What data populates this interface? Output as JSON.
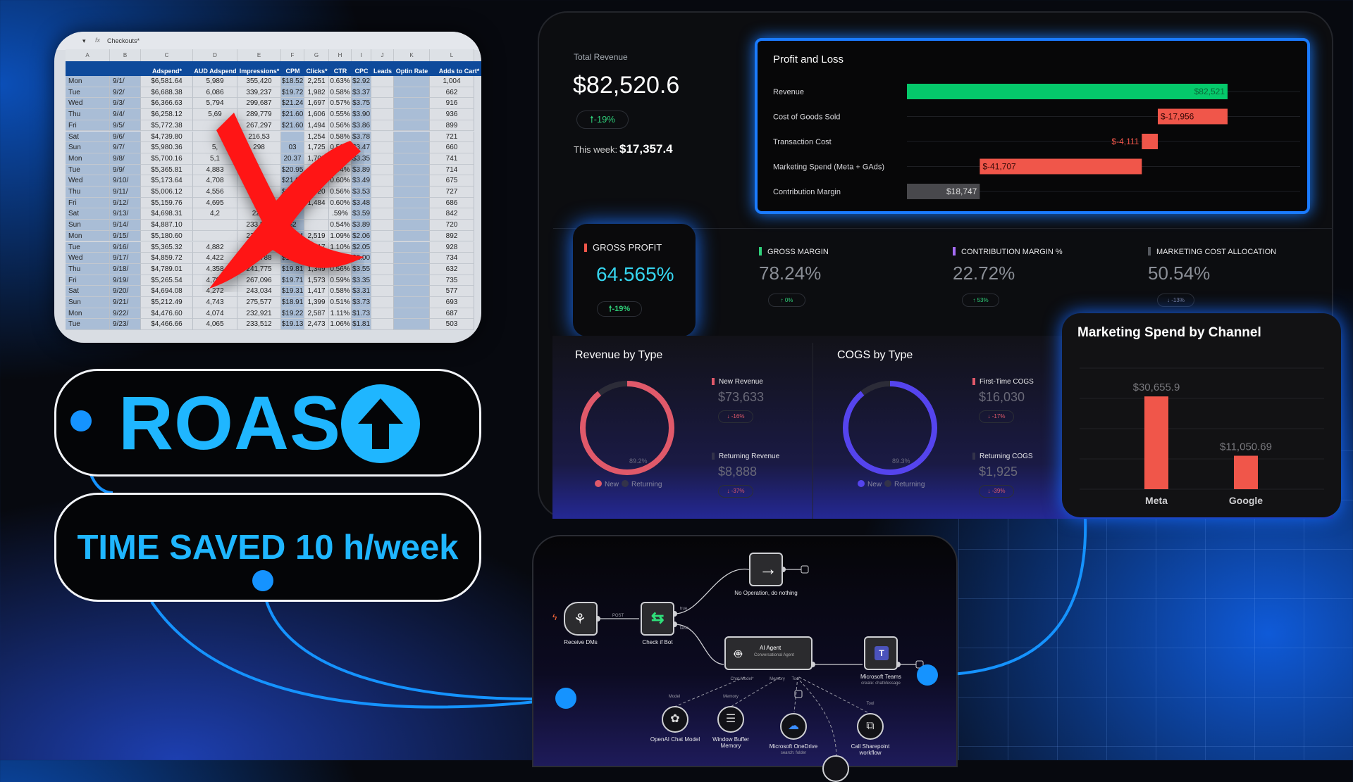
{
  "spreadsheet": {
    "formula_cell": "Checkouts*",
    "columns": [
      "A",
      "B",
      "C",
      "D",
      "E",
      "F",
      "G",
      "H",
      "I",
      "J",
      "K",
      "L"
    ],
    "headers": [
      "",
      "",
      "Adspend*",
      "AUD Adspend",
      "Impressions*",
      "CPM",
      "Clicks*",
      "CTR",
      "CPC",
      "Leads",
      "Optin Rate",
      "Adds to Cart*"
    ],
    "rows": [
      [
        "Mon",
        "9/1/",
        "$6,581.64",
        "5,989",
        "355,420",
        "$18.52",
        "2,251",
        "0.63%",
        "$2.92",
        "",
        "",
        "1,004"
      ],
      [
        "Tue",
        "9/2/",
        "$6,688.38",
        "6,086",
        "339,237",
        "$19.72",
        "1,982",
        "0.58%",
        "$3.37",
        "",
        "",
        "662"
      ],
      [
        "Wed",
        "9/3/",
        "$6,366.63",
        "5,794",
        "299,687",
        "$21.24",
        "1,697",
        "0.57%",
        "$3.75",
        "",
        "",
        "916"
      ],
      [
        "Thu",
        "9/4/",
        "$6,258.12",
        "5,69",
        "289,779",
        "$21.60",
        "1,606",
        "0.55%",
        "$3.90",
        "",
        "",
        "936"
      ],
      [
        "Fri",
        "9/5/",
        "$5,772.38",
        "",
        "267,297",
        "$21.60",
        "1,494",
        "0.56%",
        "$3.86",
        "",
        "",
        "899"
      ],
      [
        "Sat",
        "9/6/",
        "$4,739.80",
        "",
        "216,53",
        "",
        "1,254",
        "0.58%",
        "$3.78",
        "",
        "",
        "721"
      ],
      [
        "Sun",
        "9/7/",
        "$5,980.36",
        "5,",
        "298",
        "03",
        "1,725",
        "0.58%",
        "$3.47",
        "",
        "",
        "660"
      ],
      [
        "Mon",
        "9/8/",
        "$5,700.16",
        "5,1",
        "",
        "20.37",
        "1,703",
        "0.61%",
        "$3.35",
        "",
        "",
        "741"
      ],
      [
        "Tue",
        "9/9/",
        "$5,365.81",
        "4,883",
        "",
        "$20.95",
        "1,379",
        "0.54%",
        "$3.89",
        "",
        "",
        "714"
      ],
      [
        "Wed",
        "9/10/",
        "$5,173.64",
        "4,708",
        "",
        "$21.09",
        "1,483",
        "0.60%",
        "$3.49",
        "",
        "",
        "675"
      ],
      [
        "Thu",
        "9/11/",
        "$5,006.12",
        "4,556",
        "",
        "$19.65",
        "1,420",
        "0.56%",
        "$3.53",
        "",
        "",
        "727"
      ],
      [
        "Fri",
        "9/12/",
        "$5,159.76",
        "4,695",
        "",
        "",
        "1,484",
        "0.60%",
        "$3.48",
        "",
        "",
        "686"
      ],
      [
        "Sat",
        "9/13/",
        "$4,698.31",
        "4,2",
        "220,",
        "",
        "",
        ".59%",
        "$3.59",
        "",
        "",
        "842"
      ],
      [
        "Sun",
        "9/14/",
        "$4,887.10",
        "",
        "233,807",
        "$2",
        "",
        "0.54%",
        "$3.89",
        "",
        "",
        "720"
      ],
      [
        "Mon",
        "9/15/",
        "$5,180.60",
        "",
        "231,855",
        "$22.34",
        "2,519",
        "1.09%",
        "$2.06",
        "",
        "",
        "892"
      ],
      [
        "Tue",
        "9/16/",
        "$5,365.32",
        "4,882",
        "238,067",
        "$22.54",
        "2,617",
        "1.10%",
        "$2.05",
        "",
        "",
        "928"
      ],
      [
        "Wed",
        "9/17/",
        "$4,859.72",
        "4,422",
        "246,788",
        "$19.69",
        "2,431",
        "0.99%",
        "$2.00",
        "",
        "",
        "734"
      ],
      [
        "Thu",
        "9/18/",
        "$4,789.01",
        "4,358",
        "241,775",
        "$19.81",
        "1,349",
        "0.56%",
        "$3.55",
        "",
        "",
        "632"
      ],
      [
        "Fri",
        "9/19/",
        "$5,265.54",
        "4,792",
        "267,096",
        "$19.71",
        "1,573",
        "0.59%",
        "$3.35",
        "",
        "",
        "735"
      ],
      [
        "Sat",
        "9/20/",
        "$4,694.08",
        "4,272",
        "243,034",
        "$19.31",
        "1,417",
        "0.58%",
        "$3.31",
        "",
        "",
        "577"
      ],
      [
        "Sun",
        "9/21/",
        "$5,212.49",
        "4,743",
        "275,577",
        "$18.91",
        "1,399",
        "0.51%",
        "$3.73",
        "",
        "",
        "693"
      ],
      [
        "Mon",
        "9/22/",
        "$4,476.60",
        "4,074",
        "232,921",
        "$19.22",
        "2,587",
        "1.11%",
        "$1.73",
        "",
        "",
        "687"
      ],
      [
        "Tue",
        "9/23/",
        "$4,466.66",
        "4,065",
        "233,512",
        "$19.13",
        "2,473",
        "1.06%",
        "$1.81",
        "",
        "",
        "503"
      ]
    ]
  },
  "roas": {
    "label": "ROAS",
    "icon": "arrow-up-circle-icon"
  },
  "time_saved": {
    "label": "TIME SAVED 10 h/week"
  },
  "dashboard": {
    "total_revenue": {
      "label": "Total Revenue",
      "value": "$82,520.6",
      "change": "-19%",
      "this_week_label": "This week:",
      "this_week_value": "$17,357.4"
    },
    "pnl": {
      "title": "Profit and Loss",
      "rows": [
        {
          "label": "Revenue",
          "value": 82521,
          "text": "$82,521",
          "color": "#05c96b"
        },
        {
          "label": "Cost of Goods Sold",
          "value": -17956,
          "text": "$-17,956",
          "color": "#f0564a"
        },
        {
          "label": "Transaction Cost",
          "value": -4111,
          "text": "$-4,111",
          "color": "#f0564a"
        },
        {
          "label": "Marketing Spend (Meta + GAds)",
          "value": -41707,
          "text": "$-41,707",
          "color": "#f0564a"
        },
        {
          "label": "Contribution Margin",
          "value": 18747,
          "text": "$18,747",
          "color": "#48484c",
          "total": true
        }
      ]
    },
    "gross_profit": {
      "label": "GROSS PROFIT",
      "value": "64.565%",
      "change": "-19%",
      "color": "#f0564a"
    },
    "kpis": [
      {
        "label": "GROSS MARGIN",
        "value": "78.24%",
        "change": "0%",
        "color": "#2fd07a",
        "dir": "up"
      },
      {
        "label": "CONTRIBUTION MARGIN %",
        "value": "22.72%",
        "change": "53%",
        "color": "#a56cf5",
        "dir": "up"
      },
      {
        "label": "MARKETING COST ALLOCATION",
        "value": "50.54%",
        "change": "-13%",
        "color": "#55585f",
        "dir": "down"
      }
    ],
    "revenue_by_type": {
      "title": "Revenue by Type",
      "pct": "89.2%",
      "share": 0.892,
      "color": "#e0596a",
      "legend": [
        "New",
        "Returning"
      ],
      "items": [
        {
          "label": "New Revenue",
          "value": "$73,633",
          "change": "-16%",
          "color": "#e0596a"
        },
        {
          "label": "Returning Revenue",
          "value": "$8,888",
          "change": "-37%",
          "color": "#33334a"
        }
      ]
    },
    "cogs_by_type": {
      "title": "COGS by Type",
      "pct": "89.3%",
      "share": 0.893,
      "color": "#5544ee",
      "legend": [
        "New",
        "Returning"
      ],
      "items": [
        {
          "label": "First-Time COGS",
          "value": "$16,030",
          "change": "-17%",
          "color": "#e0596a"
        },
        {
          "label": "Returning COGS",
          "value": "$1,925",
          "change": "-39%",
          "color": "#33334a"
        }
      ]
    }
  },
  "chart_data": {
    "type": "bar",
    "title": "Marketing Spend by Channel",
    "categories": [
      "Meta",
      "Google"
    ],
    "values": [
      30655.9,
      11050.69
    ],
    "labels": [
      "$30,655.9",
      "$11,050.69"
    ],
    "ylim": [
      0,
      40000
    ],
    "grid": true,
    "color": "#f0564a"
  },
  "workflow": {
    "nodes": {
      "receive": "Receive DMs",
      "check": "Check if Bot",
      "noop": "No Operation, do nothing",
      "agent": "AI Agent",
      "agent_sub": "Conversational Agent",
      "teams": "Microsoft Teams",
      "teams_sub": "create: chatMessage",
      "openai": "OpenAI Chat Model",
      "memory": "Window Buffer Memory",
      "onedrive": "Microsoft OneDrive",
      "onedrive_sub": "search: folder",
      "sharepoint": "Call Sharepoint workflow"
    },
    "ports": {
      "post": "POST",
      "true": "true",
      "false": "false",
      "chat_model": "Chat Model*",
      "memory": "Memory",
      "tool": "Tool",
      "model": "Model",
      "memory2": "Memory",
      "tool2": "Tool"
    }
  }
}
